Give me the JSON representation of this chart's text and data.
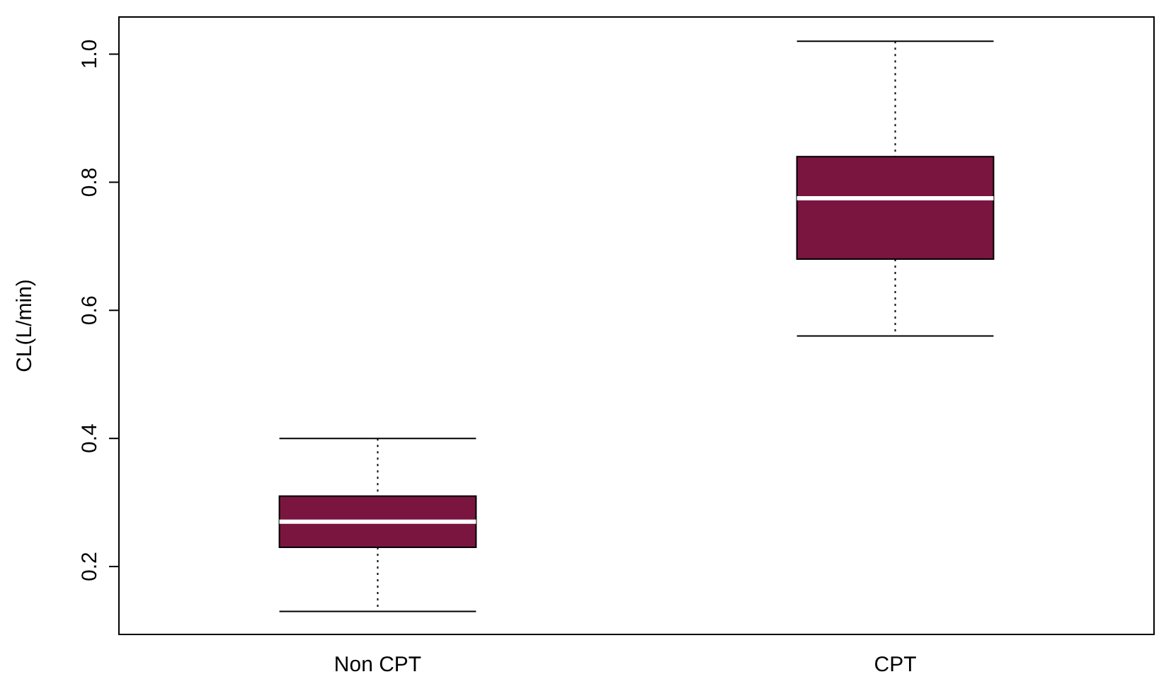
{
  "chart_data": {
    "type": "box",
    "ylabel": "CL(L/min)",
    "categories": [
      "Non CPT",
      "CPT"
    ],
    "color": "#7a1540",
    "boxes": [
      {
        "low": 0.13,
        "q1": 0.23,
        "median": 0.27,
        "q3": 0.31,
        "high": 0.4
      },
      {
        "low": 0.56,
        "q1": 0.68,
        "median": 0.775,
        "q3": 0.84,
        "high": 1.02
      }
    ],
    "ylim": [
      0.094,
      1.058
    ],
    "yticks": [
      {
        "value": 0.2,
        "label": "0.2"
      },
      {
        "value": 0.4,
        "label": "0.4"
      },
      {
        "value": 0.6,
        "label": "0.6"
      },
      {
        "value": 0.8,
        "label": "0.8"
      },
      {
        "value": 1,
        "label": "1.0"
      }
    ],
    "grid": false
  }
}
